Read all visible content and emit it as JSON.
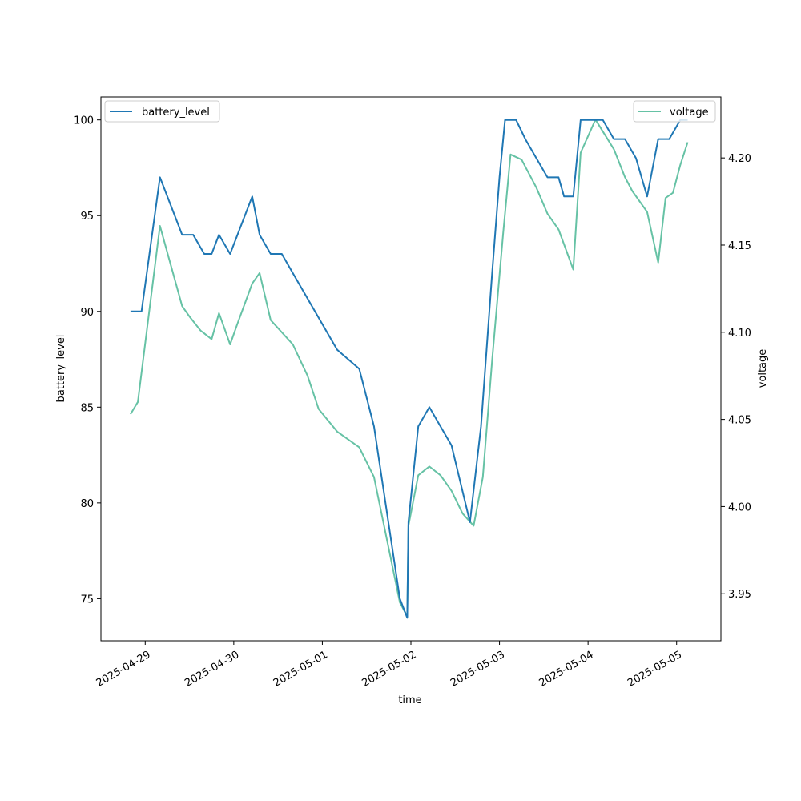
{
  "chart_data": {
    "type": "line",
    "xlabel": "time",
    "ylabel_left": "battery_level",
    "ylabel_right": "voltage",
    "x_ticks": [
      "2025-04-29",
      "2025-04-30",
      "2025-05-01",
      "2025-05-02",
      "2025-05-03",
      "2025-05-04",
      "2025-05-05"
    ],
    "x_range": [
      "2025-04-28 12:00",
      "2025-05-05 12:00"
    ],
    "y_left_ticks": [
      75,
      80,
      85,
      90,
      95,
      100
    ],
    "y_left_range": [
      72.8,
      101.2
    ],
    "y_right_ticks": [
      3.95,
      4.0,
      4.05,
      4.1,
      4.15,
      4.2
    ],
    "y_right_range": [
      3.923,
      4.235
    ],
    "legend_left_placement": "top-left",
    "legend_right_placement": "top-right",
    "series": [
      {
        "name": "battery_level",
        "axis": "left",
        "color": "#1f77b4",
        "x": [
          "2025-04-28 20:00",
          "2025-04-28 23:00",
          "2025-04-29 04:00",
          "2025-04-29 10:00",
          "2025-04-29 13:00",
          "2025-04-29 16:00",
          "2025-04-29 18:00",
          "2025-04-29 20:00",
          "2025-04-29 23:00",
          "2025-04-30 01:00",
          "2025-04-30 05:00",
          "2025-04-30 07:00",
          "2025-04-30 10:00",
          "2025-04-30 13:00",
          "2025-04-30 16:00",
          "2025-05-01 04:00",
          "2025-05-01 10:00",
          "2025-05-01 14:00",
          "2025-05-01 21:00",
          "2025-05-01 23:00",
          "2025-05-01 23:20",
          "2025-05-02 02:00",
          "2025-05-02 05:00",
          "2025-05-02 11:00",
          "2025-05-02 16:00",
          "2025-05-02 19:00",
          "2025-05-02 22:00",
          "2025-05-03 00:00",
          "2025-05-03 01:30",
          "2025-05-03 04:30",
          "2025-05-03 07:00",
          "2025-05-03 10:00",
          "2025-05-03 13:00",
          "2025-05-03 16:00",
          "2025-05-03 17:30",
          "2025-05-03 20:00",
          "2025-05-03 22:00",
          "2025-05-04 01:00",
          "2025-05-04 04:00",
          "2025-05-04 07:00",
          "2025-05-04 10:00",
          "2025-05-04 13:00",
          "2025-05-04 16:00",
          "2025-05-04 19:00",
          "2025-05-04 22:00",
          "2025-05-05 01:00",
          "2025-05-05 03:00"
        ],
        "values": [
          90,
          90,
          97,
          94,
          94,
          93,
          93,
          94,
          93,
          94,
          96,
          94,
          93,
          93,
          92,
          88,
          87,
          84,
          75,
          74,
          79,
          84,
          85,
          83,
          79,
          84,
          92,
          97,
          100,
          100,
          99,
          98,
          97,
          97,
          96,
          96,
          100,
          100,
          100,
          99,
          99,
          98,
          96,
          99,
          99,
          100,
          100
        ]
      },
      {
        "name": "voltage",
        "axis": "right",
        "color": "#66c2a5",
        "x": [
          "2025-04-28 20:00",
          "2025-04-28 22:00",
          "2025-04-29 04:00",
          "2025-04-29 10:00",
          "2025-04-29 12:00",
          "2025-04-29 15:00",
          "2025-04-29 18:00",
          "2025-04-29 20:00",
          "2025-04-29 23:00",
          "2025-04-30 01:00",
          "2025-04-30 05:00",
          "2025-04-30 07:00",
          "2025-04-30 10:00",
          "2025-04-30 16:00",
          "2025-04-30 20:00",
          "2025-04-30 23:00",
          "2025-05-01 04:00",
          "2025-05-01 10:00",
          "2025-05-01 14:00",
          "2025-05-01 21:00",
          "2025-05-01 23:00",
          "2025-05-01 23:20",
          "2025-05-02 02:00",
          "2025-05-02 05:00",
          "2025-05-02 08:00",
          "2025-05-02 11:00",
          "2025-05-02 14:00",
          "2025-05-02 17:00",
          "2025-05-02 19:30",
          "2025-05-02 22:00",
          "2025-05-03 01:00",
          "2025-05-03 03:00",
          "2025-05-03 06:00",
          "2025-05-03 10:00",
          "2025-05-03 13:00",
          "2025-05-03 16:00",
          "2025-05-03 20:00",
          "2025-05-03 22:00",
          "2025-05-04 02:00",
          "2025-05-04 07:00",
          "2025-05-04 10:00",
          "2025-05-04 12:00",
          "2025-05-04 16:00",
          "2025-05-04 19:00",
          "2025-05-04 21:00",
          "2025-05-04 23:00",
          "2025-05-05 01:00",
          "2025-05-05 03:00"
        ],
        "values": [
          4.053,
          4.06,
          4.161,
          4.115,
          4.109,
          4.101,
          4.096,
          4.111,
          4.093,
          4.105,
          4.128,
          4.134,
          4.107,
          4.093,
          4.075,
          4.056,
          4.043,
          4.034,
          4.017,
          3.945,
          3.937,
          3.989,
          4.018,
          4.023,
          4.018,
          4.009,
          3.996,
          3.989,
          4.017,
          4.084,
          4.157,
          4.202,
          4.199,
          4.183,
          4.168,
          4.159,
          4.136,
          4.203,
          4.222,
          4.205,
          4.189,
          4.181,
          4.169,
          4.14,
          4.177,
          4.18,
          4.196,
          4.209
        ]
      }
    ]
  }
}
